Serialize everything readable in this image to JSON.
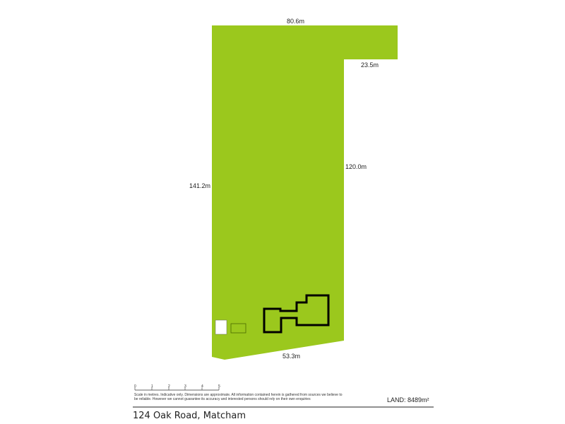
{
  "plan": {
    "land_color": "#9bc81d",
    "dimensions": {
      "top": "80.6m",
      "notch": "23.5m",
      "right": "120.0m",
      "left": "141.2m",
      "bottom": "53.3m"
    }
  },
  "scale": {
    "ticks": [
      "0",
      "1",
      "2",
      "3",
      "4",
      "5"
    ]
  },
  "footer": {
    "disclaimer": "Scale in metres. Indicative only. Dimensions are approximate. All information contained herein is gathered from sources we believe to be reliable. However we cannot guarantee its accuracy and interested persons should rely on their own enquiries",
    "land": "LAND: 8489m²",
    "address": "124 Oak Road, Matcham"
  }
}
